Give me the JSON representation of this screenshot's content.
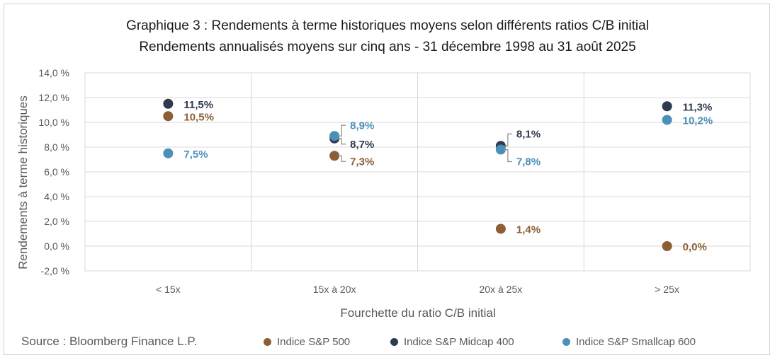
{
  "colors": {
    "sp500": "#8B5E34",
    "midcap": "#2E3A4E",
    "smallcap": "#4A90B8",
    "grid": "#d9d9d9"
  },
  "source": "Source : Bloomberg Finance L.P.",
  "chart_data": {
    "type": "scatter",
    "title": "Graphique 3 : Rendements à terme historiques moyens selon différents ratios C/B initial",
    "subtitle": "Rendements annualisés moyens sur cinq ans - 31 décembre 1998 au 31 août 2025",
    "xlabel": "Fourchette du ratio C/B initial",
    "ylabel": "Rendements à terme historiques",
    "categories": [
      "< 15x",
      "15x à 20x",
      "20x à 25x",
      "> 25x"
    ],
    "ylim": [
      -2.0,
      14.0
    ],
    "yticks": [
      "-2,0 %",
      "0,0 %",
      "2,0 %",
      "4,0 %",
      "6,0 %",
      "8,0 %",
      "10,0 %",
      "12,0 %",
      "14,0 %"
    ],
    "grid": true,
    "legend_position": "bottom",
    "series": [
      {
        "name": "Indice S&P 500",
        "key": "sp500",
        "values": [
          10.5,
          7.3,
          1.4,
          0.0
        ],
        "labels": [
          "10,5%",
          "7,3%",
          "1,4%",
          "0,0%"
        ]
      },
      {
        "name": "Indice S&P Midcap 400",
        "key": "midcap",
        "values": [
          11.5,
          8.7,
          8.1,
          11.3
        ],
        "labels": [
          "11,5%",
          "8,7%",
          "8,1%",
          "11,3%"
        ]
      },
      {
        "name": "Indice S&P Smallcap 600",
        "key": "smallcap",
        "values": [
          7.5,
          8.9,
          7.8,
          10.2
        ],
        "labels": [
          "7,5%",
          "8,9%",
          "7,8%",
          "10,2%"
        ]
      }
    ]
  }
}
